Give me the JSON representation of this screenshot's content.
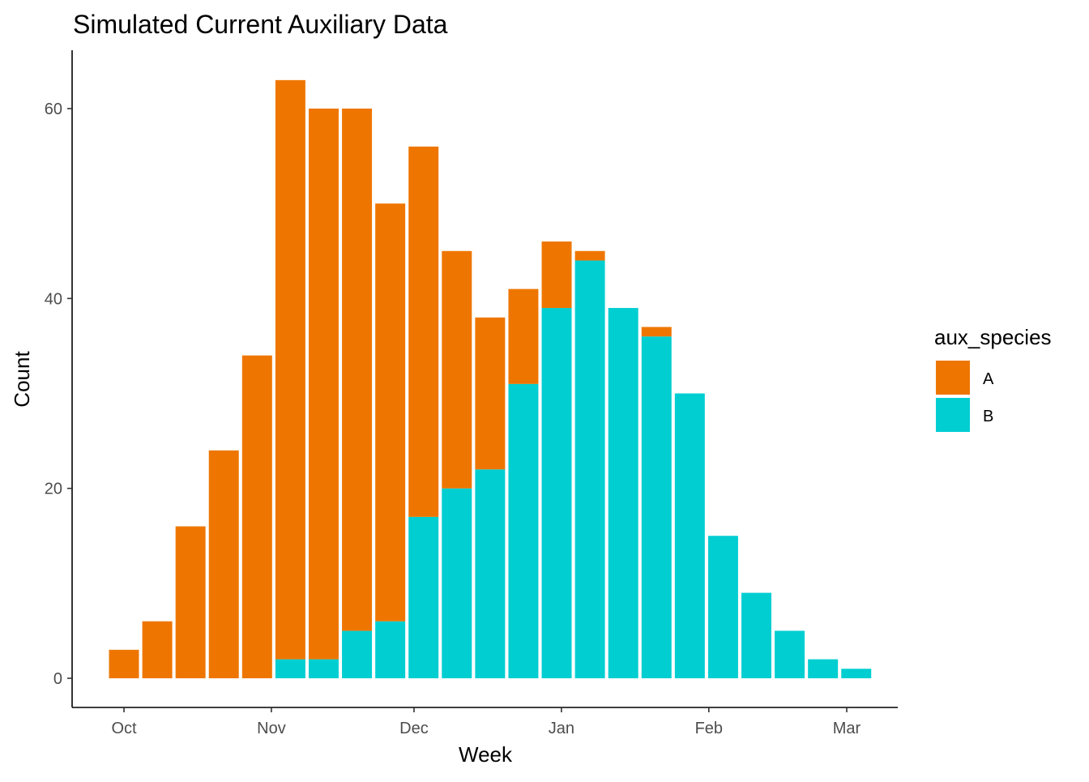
{
  "chart_data": {
    "type": "bar",
    "stacked": true,
    "title": "Simulated Current Auxiliary Data",
    "xlabel": "Week",
    "ylabel": "Count",
    "ylim": [
      -5,
      66
    ],
    "grid": false,
    "legend_position": "right",
    "legend_title": "aux_species",
    "x_ticks": [
      {
        "label": "Oct",
        "date": "2023-10-01"
      },
      {
        "label": "Nov",
        "date": "2023-11-01"
      },
      {
        "label": "Dec",
        "date": "2023-12-01"
      },
      {
        "label": "Jan",
        "date": "2024-01-01"
      },
      {
        "label": "Feb",
        "date": "2024-02-01"
      },
      {
        "label": "Mar",
        "date": "2024-03-01"
      }
    ],
    "y_ticks": [
      0,
      20,
      40,
      60
    ],
    "x": [
      "2023-10-01",
      "2023-10-08",
      "2023-10-15",
      "2023-10-22",
      "2023-10-29",
      "2023-11-05",
      "2023-11-12",
      "2023-11-19",
      "2023-11-26",
      "2023-12-03",
      "2023-12-10",
      "2023-12-17",
      "2023-12-24",
      "2023-12-31",
      "2024-01-07",
      "2024-01-14",
      "2024-01-21",
      "2024-01-28",
      "2024-02-04",
      "2024-02-11",
      "2024-02-18",
      "2024-02-25",
      "2024-03-03"
    ],
    "series": [
      {
        "name": "B",
        "color": "#00CED1",
        "values": [
          0,
          0,
          0,
          0,
          0,
          2,
          2,
          5,
          6,
          17,
          20,
          22,
          31,
          39,
          44,
          39,
          36,
          30,
          15,
          9,
          5,
          2,
          1
        ]
      },
      {
        "name": "A",
        "color": "#EE7600",
        "values": [
          3,
          6,
          16,
          24,
          34,
          61,
          58,
          55,
          44,
          39,
          25,
          16,
          10,
          7,
          1,
          0,
          1,
          0,
          0,
          0,
          0,
          0,
          0
        ]
      }
    ]
  }
}
